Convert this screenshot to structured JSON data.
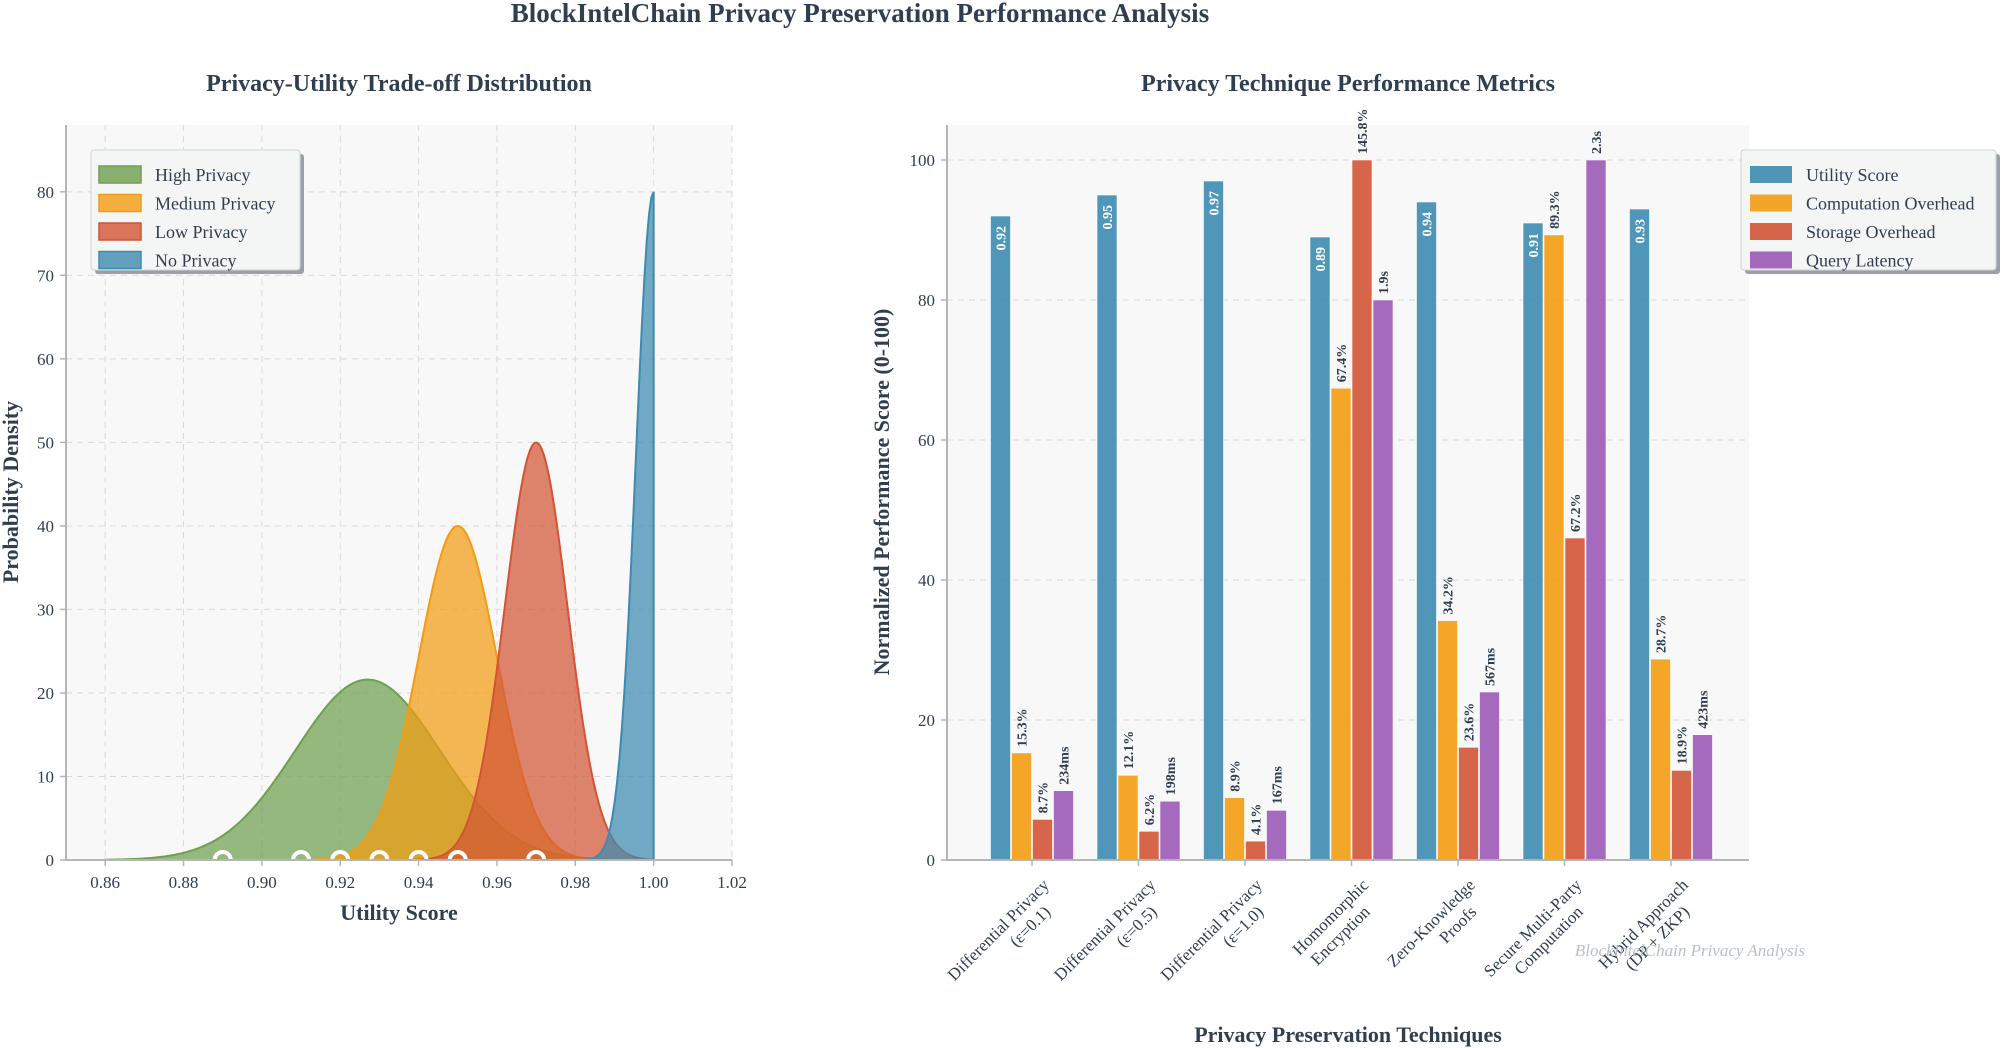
{
  "suptitle": "BlockIntelChain Privacy Preservation Performance Analysis",
  "watermark": "BlockIntelChain Privacy Analysis",
  "chart_data": [
    {
      "type": "area",
      "title": "Privacy-Utility Trade-off Distribution",
      "xlabel": "Utility Score",
      "ylabel": "Probability Density",
      "xlim": [
        0.85,
        1.02
      ],
      "ylim": [
        0,
        88
      ],
      "xticks": [
        0.86,
        0.88,
        0.9,
        0.92,
        0.94,
        0.96,
        0.98,
        1.0,
        1.02
      ],
      "yticks": [
        0,
        10,
        20,
        30,
        40,
        50,
        60,
        70,
        80
      ],
      "grid": true,
      "legend_position": "top-left",
      "series": [
        {
          "name": "High Privacy",
          "color": "#6f9f4f",
          "mean": 0.927,
          "sd": 0.0185,
          "peak": 21.6,
          "xmin": 0.86,
          "xmax": 1.0
        },
        {
          "name": "Medium Privacy",
          "color": "#f39c12",
          "mean": 0.95,
          "sd": 0.01,
          "peak": 40,
          "xmin": 0.86,
          "xmax": 1.0
        },
        {
          "name": "Low Privacy",
          "color": "#d35435",
          "mean": 0.97,
          "sd": 0.008,
          "peak": 50,
          "xmin": 0.86,
          "xmax": 1.0
        },
        {
          "name": "No Privacy",
          "color": "#3d8bb0",
          "mean": 1.0,
          "sd": 0.0045,
          "peak": 80,
          "xmin": 0.86,
          "xmax": 1.0
        }
      ],
      "markers": [
        {
          "x": 0.89,
          "color": "#6f9f4f"
        },
        {
          "x": 0.91,
          "color": "#6f9f4f"
        },
        {
          "x": 0.92,
          "color": "#6f9f4f"
        },
        {
          "x": 0.93,
          "color": "#6f9f4f"
        },
        {
          "x": 0.94,
          "color": "#6f9f4f"
        },
        {
          "x": 0.95,
          "color": "#f39c12"
        },
        {
          "x": 0.97,
          "color": "#d35435"
        }
      ]
    },
    {
      "type": "bar",
      "title": "Privacy Technique Performance Metrics",
      "xlabel": "Privacy Preservation Techniques",
      "ylabel": "Normalized Performance Score (0-100)",
      "ylim": [
        0,
        100
      ],
      "yticks": [
        0,
        20,
        40,
        60,
        80,
        100
      ],
      "grid": true,
      "legend_position": "top-right",
      "categories": [
        [
          "Differential Privacy",
          "(ε=0.1)"
        ],
        [
          "Differential Privacy",
          "(ε=0.5)"
        ],
        [
          "Differential Privacy",
          "(ε=1.0)"
        ],
        [
          "Homomorphic",
          "Encryption"
        ],
        [
          "Zero-Knowledge",
          "Proofs"
        ],
        [
          "Secure Multi-Party",
          "Computation"
        ],
        [
          "Hybrid Approach",
          "(DP + ZKP)"
        ]
      ],
      "series": [
        {
          "name": "Utility Score",
          "color": "#3d8bb0",
          "label_color": "#ffffff",
          "label_inside": true,
          "values": [
            92,
            95,
            97,
            89,
            94,
            91,
            93
          ],
          "labels": [
            "0.92",
            "0.95",
            "0.97",
            "0.89",
            "0.94",
            "0.91",
            "0.93"
          ]
        },
        {
          "name": "Computation Overhead",
          "color": "#f39c12",
          "label_color": "#2f3e50",
          "label_inside": false,
          "values": [
            15.3,
            12.1,
            8.9,
            67.4,
            34.2,
            89.3,
            28.7
          ],
          "labels": [
            "15.3%",
            "12.1%",
            "8.9%",
            "67.4%",
            "34.2%",
            "89.3%",
            "28.7%"
          ]
        },
        {
          "name": "Storage Overhead",
          "color": "#d35435",
          "label_color": "#2f3e50",
          "label_inside": false,
          "values": [
            5.8,
            4.1,
            2.7,
            100,
            16.1,
            46,
            12.8
          ],
          "labels": [
            "8.7%",
            "6.2%",
            "4.1%",
            "145.8%",
            "23.6%",
            "67.2%",
            "18.9%"
          ]
        },
        {
          "name": "Query Latency",
          "color": "#9b59b6",
          "label_color": "#2f3e50",
          "label_inside": false,
          "values": [
            9.9,
            8.4,
            7.1,
            80,
            24,
            100,
            17.9
          ],
          "labels": [
            "234ms",
            "198ms",
            "167ms",
            "1.9s",
            "567ms",
            "2.3s",
            "423ms"
          ]
        }
      ]
    }
  ]
}
